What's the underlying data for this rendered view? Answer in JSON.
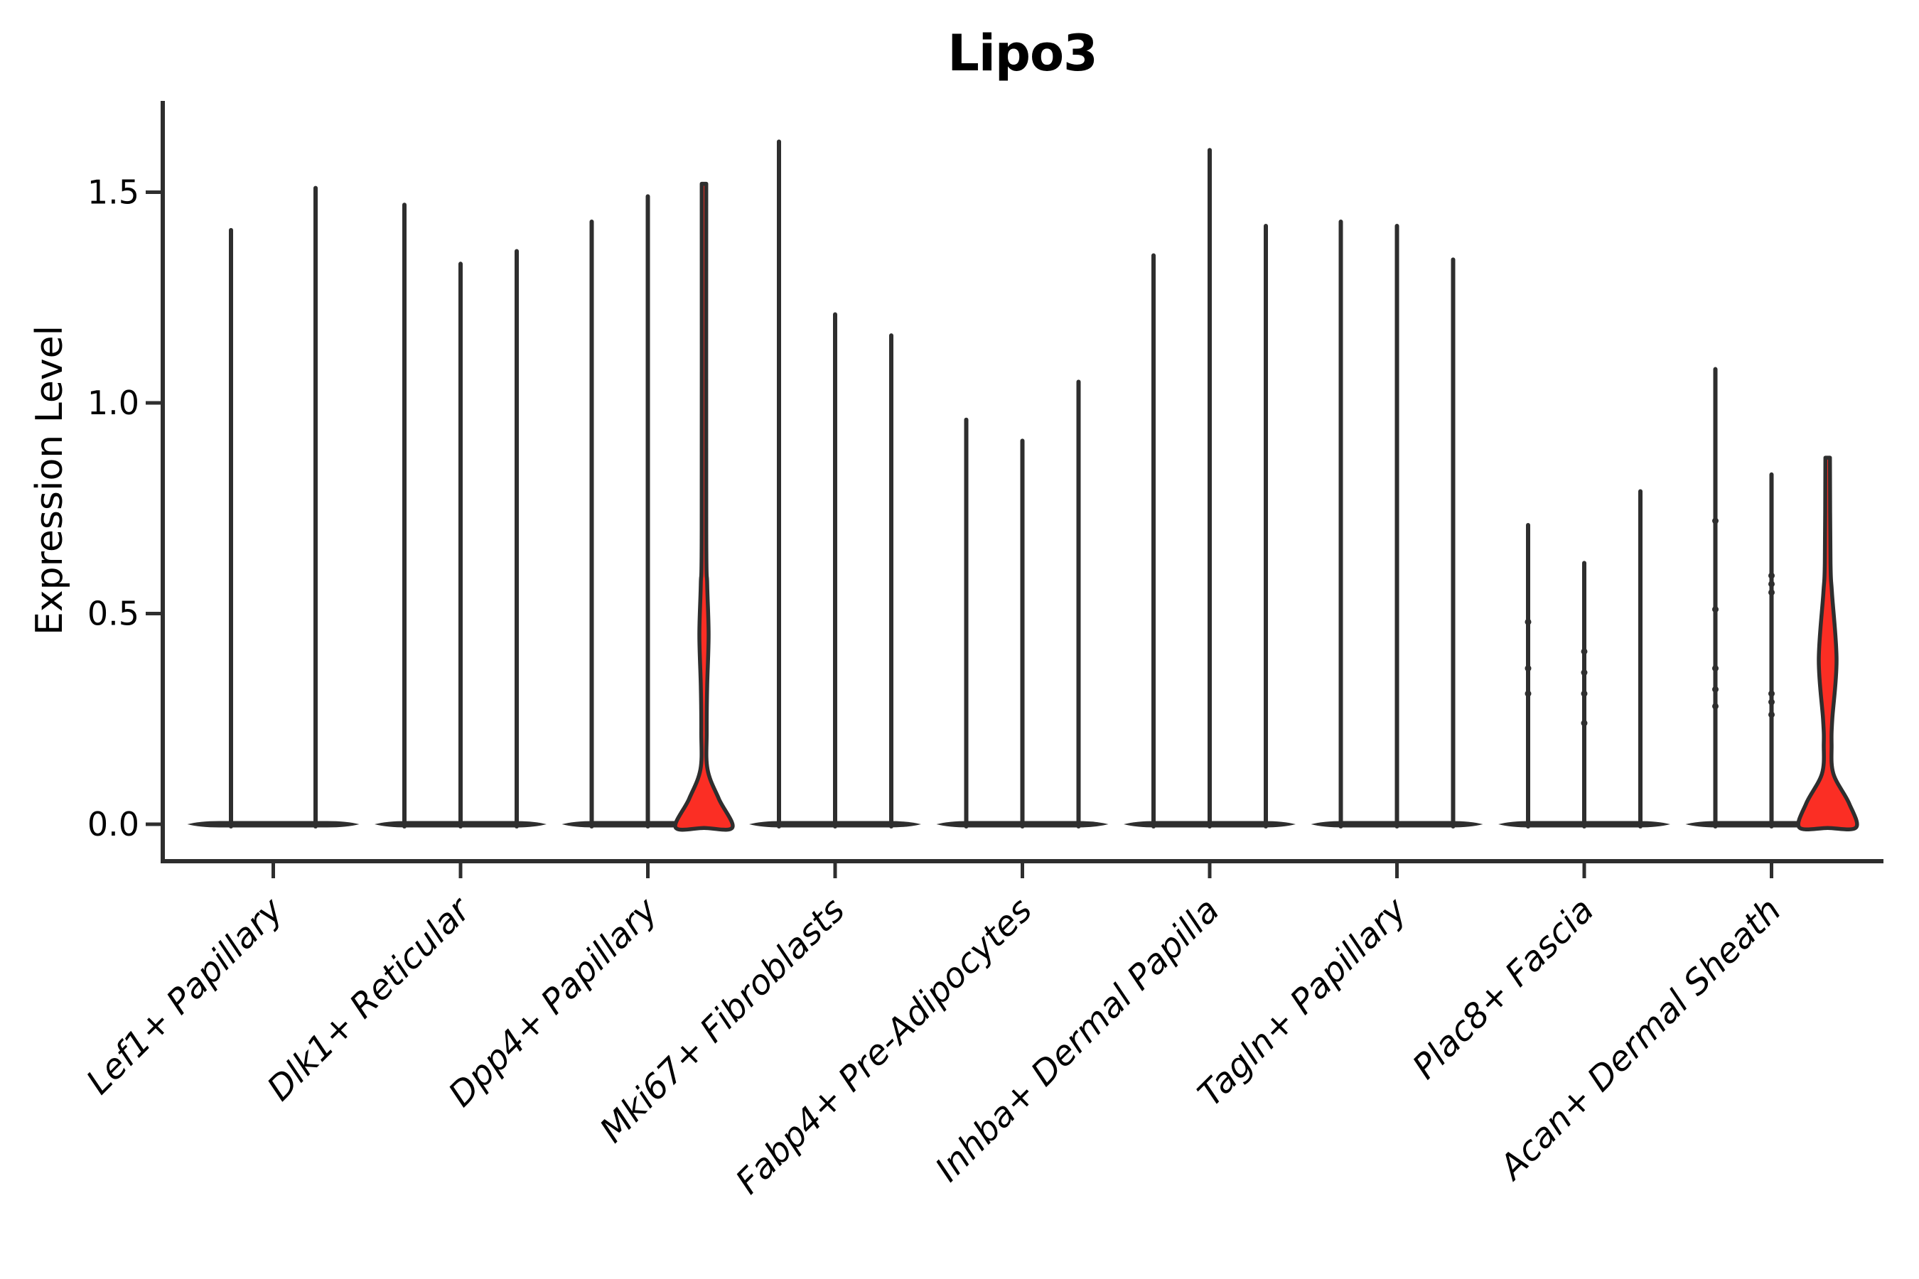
{
  "title": "Lipo3",
  "chart_data": {
    "type": "violin",
    "title": "Lipo3",
    "xlabel": "",
    "ylabel": "Expression Level",
    "ylim": [
      -0.08,
      1.72
    ],
    "yticks": [
      0.0,
      0.5,
      1.0,
      1.5
    ],
    "grid": false,
    "legend": false,
    "colors": {
      "outline": "#2e2e2e",
      "highlight_fill": "#fb2e24",
      "text": "#000000",
      "background": "#ffffff"
    },
    "groups": [
      {
        "label": "Lef1+ Papillary",
        "violins": [
          {
            "max": 1.41
          },
          {
            "max": 1.51
          }
        ]
      },
      {
        "label": "Dlk1+ Reticular",
        "violins": [
          {
            "max": 1.47
          },
          {
            "max": 1.33
          },
          {
            "max": 1.36
          }
        ]
      },
      {
        "label": "Dpp4+ Papillary",
        "violins": [
          {
            "max": 1.43
          },
          {
            "max": 1.49
          },
          {
            "max": 1.52,
            "highlighted": true,
            "profile": [
              [
                1.52,
                3.2
              ],
              [
                0.7,
                3.2
              ],
              [
                0.57,
                4.5
              ],
              [
                0.45,
                6.5
              ],
              [
                0.33,
                4.5
              ],
              [
                0.22,
                3.8
              ],
              [
                0.13,
                5
              ],
              [
                0.06,
                21
              ],
              [
                0,
                40
              ]
            ]
          }
        ]
      },
      {
        "label": "Mki67+ Fibroblasts",
        "violins": [
          {
            "max": 1.62
          },
          {
            "max": 1.21
          },
          {
            "max": 1.16
          }
        ]
      },
      {
        "label": "Fabp4+ Pre-Adipocytes",
        "violins": [
          {
            "max": 0.96
          },
          {
            "max": 0.91
          },
          {
            "max": 1.05
          }
        ]
      },
      {
        "label": "Inhba+ Dermal Papilla",
        "violins": [
          {
            "max": 1.35
          },
          {
            "max": 1.6
          },
          {
            "max": 1.42
          }
        ]
      },
      {
        "label": "Tagln+ Papillary",
        "violins": [
          {
            "max": 1.43
          },
          {
            "max": 1.42
          },
          {
            "max": 1.34
          }
        ]
      },
      {
        "label": "Plac8+ Fascia",
        "violins": [
          {
            "max": 0.71,
            "points": [
              0.48,
              0.37,
              0.31
            ]
          },
          {
            "max": 0.62,
            "points": [
              0.41,
              0.36,
              0.31,
              0.24
            ]
          },
          {
            "max": 0.79
          }
        ]
      },
      {
        "label": "Acan+ Dermal Sheath",
        "violins": [
          {
            "max": 1.08,
            "points": [
              0.72,
              0.51,
              0.37,
              0.32,
              0.28
            ]
          },
          {
            "max": 0.83,
            "points": [
              0.59,
              0.57,
              0.55,
              0.31,
              0.29,
              0.26
            ]
          },
          {
            "max": 0.87,
            "highlighted": true,
            "profile": [
              [
                0.87,
                3.2
              ],
              [
                0.62,
                4.0
              ],
              [
                0.55,
                6
              ],
              [
                0.39,
                12.5
              ],
              [
                0.25,
                6.5
              ],
              [
                0.19,
                5.5
              ],
              [
                0.12,
                8
              ],
              [
                0.05,
                30
              ],
              [
                0,
                40
              ]
            ]
          }
        ]
      }
    ]
  }
}
